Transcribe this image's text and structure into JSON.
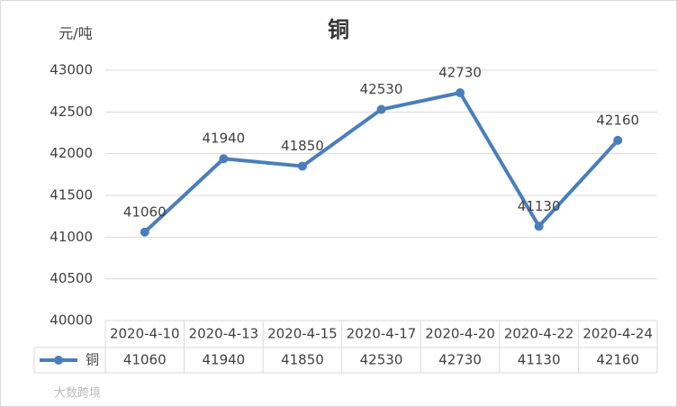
{
  "chart_data": {
    "type": "line",
    "title": "铜",
    "y_label": "元/吨",
    "categories": [
      "2020-4-10",
      "2020-4-13",
      "2020-4-15",
      "2020-4-17",
      "2020-4-20",
      "2020-4-22",
      "2020-4-24"
    ],
    "series": [
      {
        "name": "铜",
        "color": "#4a7ebb",
        "values": [
          41060,
          41940,
          41850,
          42530,
          42730,
          41130,
          42160
        ]
      }
    ],
    "ylim": [
      40000,
      43000
    ],
    "yticks": [
      40000,
      40500,
      41000,
      41500,
      42000,
      42500,
      43000
    ],
    "grid": true,
    "data_table": true,
    "watermark": "大数跨境"
  }
}
